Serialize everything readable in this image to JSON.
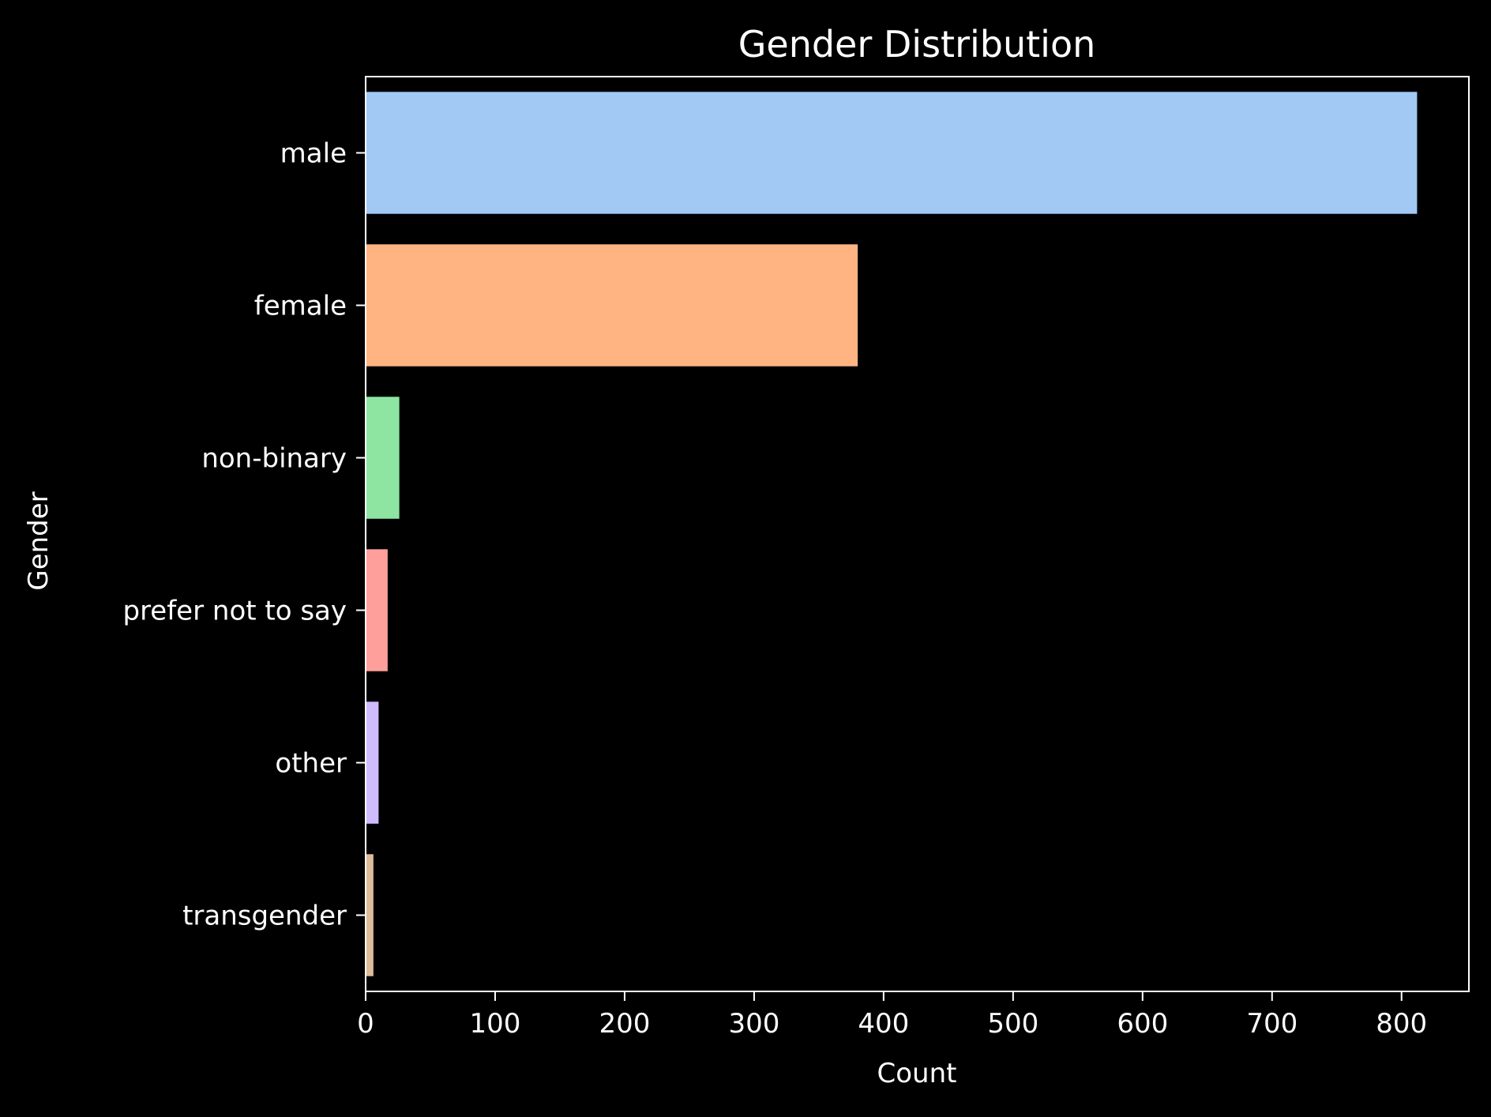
{
  "chart_data": {
    "type": "bar",
    "orientation": "horizontal",
    "title": "Gender Distribution",
    "xlabel": "Count",
    "ylabel": "Gender",
    "categories": [
      "male",
      "female",
      "non-binary",
      "prefer not to say",
      "other",
      "transgender"
    ],
    "values": [
      812,
      380,
      26,
      17,
      10,
      6
    ],
    "colors": [
      "#a1c9f4",
      "#ffb482",
      "#8de5a1",
      "#ff9f9b",
      "#d0bbff",
      "#debb9b"
    ],
    "xlim": [
      0,
      852
    ],
    "xticks": [
      0,
      100,
      200,
      300,
      400,
      500,
      600,
      700,
      800
    ],
    "grid": false,
    "legend": "none",
    "background": "#000000",
    "foreground": "#ffffff"
  }
}
